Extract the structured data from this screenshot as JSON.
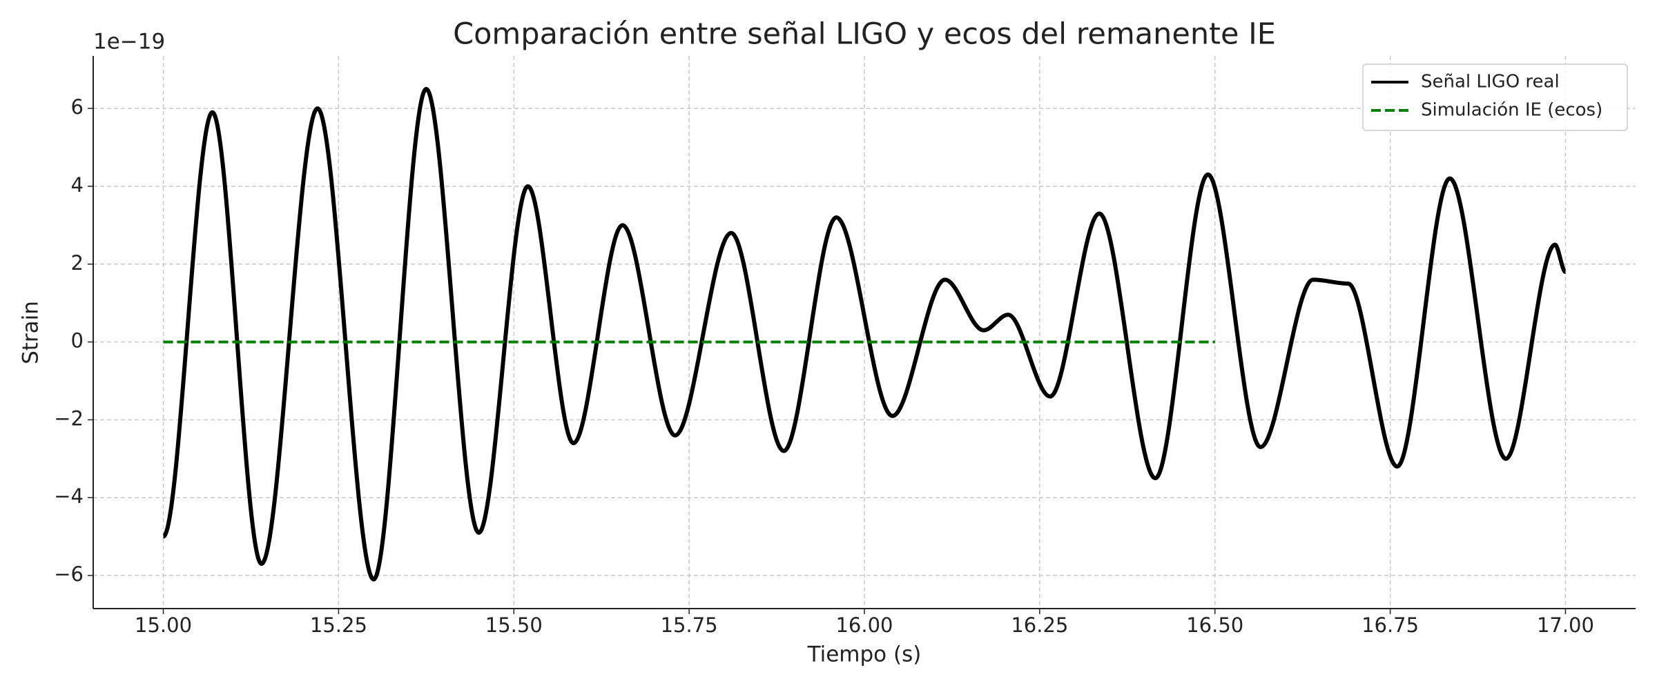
{
  "chart_data": {
    "type": "line",
    "title": "Comparación entre señal LIGO y ecos del remanente IE",
    "x_label": "Tiempo (s)",
    "y_label": "Strain",
    "y_offset_label": "1e−19",
    "xlim": [
      14.9,
      17.1
    ],
    "ylim": [
      -6.85,
      7.35
    ],
    "xticks": [
      {
        "value": 15,
        "label": "15.00"
      },
      {
        "value": 15.25,
        "label": "15.25"
      },
      {
        "value": 15.5,
        "label": "15.50"
      },
      {
        "value": 15.75,
        "label": "15.75"
      },
      {
        "value": 16,
        "label": "16.00"
      },
      {
        "value": 16.25,
        "label": "16.25"
      },
      {
        "value": 16.5,
        "label": "16.50"
      },
      {
        "value": 16.75,
        "label": "16.75"
      },
      {
        "value": 17,
        "label": "17.00"
      }
    ],
    "yticks": [
      {
        "value": -6,
        "label": "−6"
      },
      {
        "value": -4,
        "label": "−4"
      },
      {
        "value": -2,
        "label": "−2"
      },
      0,
      2,
      4,
      6
    ],
    "grid": true,
    "legend": "upper right",
    "series": [
      {
        "name": "Señal LIGO real",
        "color": "#000000",
        "style": "solid",
        "x": [
          15.0,
          15.07,
          15.14,
          15.22,
          15.3,
          15.375,
          15.45,
          15.52,
          15.585,
          15.655,
          15.73,
          15.81,
          15.885,
          15.96,
          16.04,
          16.115,
          16.17,
          16.205,
          16.265,
          16.335,
          16.415,
          16.49,
          16.565,
          16.64,
          16.69,
          16.76,
          16.835,
          16.915,
          16.985,
          17.0
        ],
        "values": [
          -5.0,
          5.9,
          -5.7,
          6.0,
          -6.1,
          6.5,
          -4.9,
          4.0,
          -2.6,
          3.0,
          -2.4,
          2.8,
          -2.8,
          3.2,
          -1.9,
          1.6,
          0.3,
          0.7,
          -1.4,
          3.3,
          -3.5,
          4.3,
          -2.7,
          1.6,
          1.5,
          -3.2,
          4.2,
          -3.0,
          2.5,
          1.8
        ]
      },
      {
        "name": "Simulación IE (ecos)",
        "color": "#008000",
        "style": "dashed",
        "x": [
          15.0,
          16.5
        ],
        "values": [
          0,
          0
        ]
      }
    ]
  }
}
